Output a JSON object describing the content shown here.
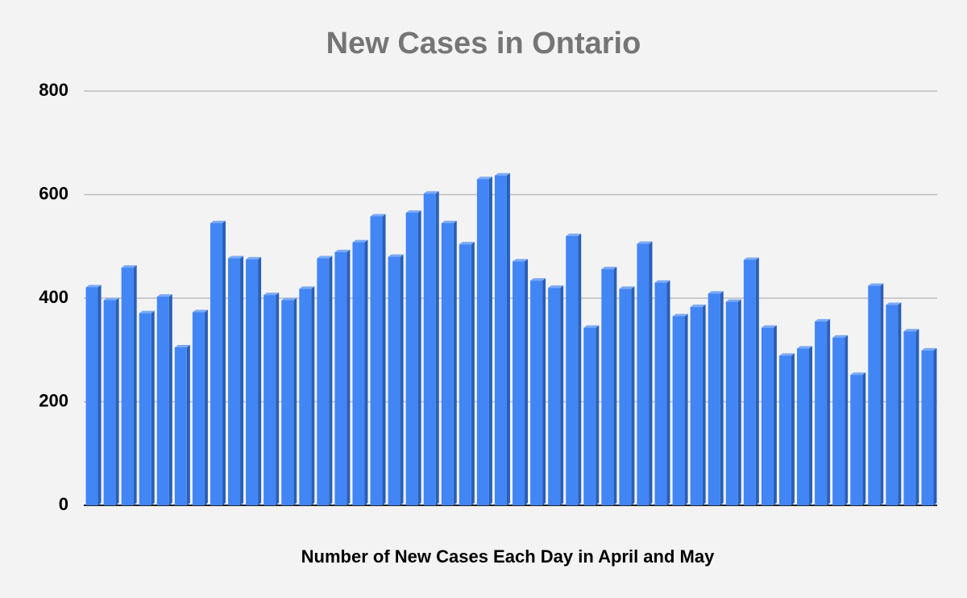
{
  "chart_data": {
    "type": "bar",
    "title": "New Cases in Ontario",
    "x_label": "Number of New Cases Each Day in April and May",
    "categories": [
      null,
      null,
      null,
      null,
      null,
      null,
      null,
      null,
      null,
      null,
      null,
      null,
      null,
      null,
      null,
      null,
      null,
      null,
      null,
      null,
      null,
      null,
      null,
      null,
      null,
      null,
      null,
      null,
      null,
      null,
      null,
      null,
      null,
      null,
      null,
      null,
      null,
      null,
      null,
      null,
      null,
      null,
      null,
      null,
      null,
      null,
      null,
      null
    ],
    "values": [
      421,
      396,
      459,
      371,
      403,
      305,
      373,
      545,
      477,
      475,
      406,
      396,
      418,
      477,
      489,
      508,
      558,
      480,
      565,
      602,
      545,
      504,
      630,
      637,
      471,
      434,
      420,
      520,
      343,
      456,
      418,
      505,
      430,
      365,
      383,
      409,
      393,
      474,
      343,
      289,
      303,
      355,
      324,
      252,
      424,
      387,
      336,
      299
    ],
    "color": "#4285f4",
    "ylim": [
      0,
      800
    ],
    "yticks": [
      0,
      200,
      400,
      600,
      800
    ],
    "grid": true
  }
}
